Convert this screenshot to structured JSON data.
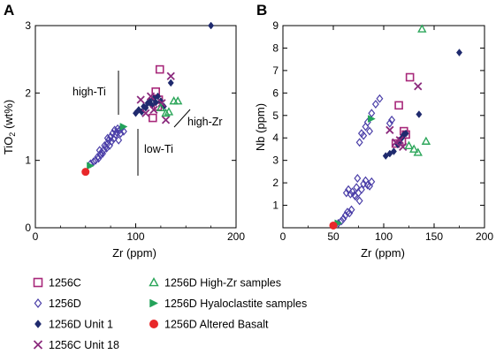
{
  "chart_data": [
    {
      "panel": "A",
      "type": "scatter",
      "xlabel": "Zr (ppm)",
      "ylabel_main": "TiO",
      "ylabel_sub": "2",
      "ylabel_unit": " (wt%)",
      "xlim": [
        0,
        200
      ],
      "ylim": [
        0,
        3
      ],
      "xticks": [
        "0",
        "100",
        "200"
      ],
      "yticks": [
        "0",
        "1",
        "2",
        "3"
      ],
      "annotations": [
        "high-Ti",
        "low-Ti",
        "high-Zr"
      ],
      "series": [
        {
          "name": "1256C",
          "marker": "open-square",
          "color": "#a8287a",
          "points": [
            [
              117,
              1.63
            ],
            [
              120,
              2.02
            ],
            [
              123,
              1.9
            ],
            [
              124,
              2.35
            ],
            [
              122,
              1.8
            ]
          ]
        },
        {
          "name": "1256D",
          "marker": "open-diamond",
          "color": "#4b3fa8",
          "points": [
            [
              55,
              0.95
            ],
            [
              58,
              0.98
            ],
            [
              60,
              1.0
            ],
            [
              62,
              1.05
            ],
            [
              63,
              1.03
            ],
            [
              65,
              1.08
            ],
            [
              66,
              1.12
            ],
            [
              67,
              1.1
            ],
            [
              68,
              1.15
            ],
            [
              70,
              1.2
            ],
            [
              71,
              1.18
            ],
            [
              72,
              1.25
            ],
            [
              73,
              1.3
            ],
            [
              74,
              1.22
            ],
            [
              75,
              1.35
            ],
            [
              76,
              1.28
            ],
            [
              77,
              1.4
            ],
            [
              78,
              1.32
            ],
            [
              79,
              1.45
            ],
            [
              80,
              1.38
            ],
            [
              81,
              1.42
            ],
            [
              82,
              1.47
            ],
            [
              83,
              1.3
            ],
            [
              84,
              1.45
            ],
            [
              85,
              1.4
            ],
            [
              86,
              1.48
            ],
            [
              88,
              1.43
            ],
            [
              64,
              1.15
            ],
            [
              69,
              1.22
            ],
            [
              72,
              1.33
            ]
          ]
        },
        {
          "name": "1256D Unit 1",
          "marker": "filled-diamond",
          "color": "#1f2a6e",
          "points": [
            [
              100,
              1.7
            ],
            [
              103,
              1.75
            ],
            [
              106,
              1.72
            ],
            [
              108,
              1.8
            ],
            [
              110,
              1.78
            ],
            [
              112,
              1.85
            ],
            [
              114,
              1.88
            ],
            [
              116,
              1.82
            ],
            [
              118,
              1.92
            ],
            [
              120,
              1.86
            ],
            [
              122,
              1.95
            ],
            [
              125,
              1.88
            ],
            [
              128,
              1.8
            ],
            [
              135,
              2.15
            ],
            [
              175,
              3.0
            ]
          ]
        },
        {
          "name": "1256C Unit 18",
          "marker": "x",
          "color": "#8b2a7d",
          "points": [
            [
              105,
              1.9
            ],
            [
              110,
              1.7
            ],
            [
              115,
              1.95
            ],
            [
              118,
              1.75
            ],
            [
              126,
              1.85
            ],
            [
              130,
              1.6
            ],
            [
              135,
              2.25
            ]
          ]
        },
        {
          "name": "1256D High-Zr samples",
          "marker": "open-triangle",
          "color": "#2ca65a",
          "points": [
            [
              125,
              1.78
            ],
            [
              130,
              1.7
            ],
            [
              133,
              1.72
            ],
            [
              138,
              1.88
            ],
            [
              142,
              1.88
            ]
          ]
        },
        {
          "name": "1256D Hyaloclastite samples",
          "marker": "filled-right-triangle",
          "color": "#23a25a",
          "points": [
            [
              55,
              0.92
            ],
            [
              88,
              1.5
            ]
          ]
        },
        {
          "name": "1256D Altered Basalt",
          "marker": "filled-circle",
          "color": "#e8282a",
          "points": [
            [
              50,
              0.83
            ]
          ]
        }
      ]
    },
    {
      "panel": "B",
      "type": "scatter",
      "xlabel": "Zr (ppm)",
      "ylabel": "Nb (ppm)",
      "xlim": [
        0,
        200
      ],
      "ylim": [
        0,
        9
      ],
      "xticks": [
        "0",
        "50",
        "100",
        "150",
        "200"
      ],
      "yticks": [
        "1",
        "2",
        "3",
        "4",
        "5",
        "6",
        "7",
        "8",
        "9"
      ],
      "series": [
        {
          "name": "1256C",
          "marker": "open-square",
          "color": "#a8287a",
          "points": [
            [
              112,
              3.75
            ],
            [
              118,
              3.85
            ],
            [
              120,
              4.3
            ],
            [
              122,
              4.15
            ],
            [
              126,
              6.7
            ],
            [
              115,
              5.45
            ]
          ]
        },
        {
          "name": "1256D",
          "marker": "open-diamond",
          "color": "#4b3fa8",
          "points": [
            [
              55,
              0.2
            ],
            [
              58,
              0.3
            ],
            [
              60,
              0.4
            ],
            [
              62,
              0.55
            ],
            [
              64,
              0.7
            ],
            [
              66,
              0.65
            ],
            [
              68,
              0.8
            ],
            [
              63,
              1.55
            ],
            [
              65,
              1.7
            ],
            [
              67,
              1.5
            ],
            [
              69,
              1.6
            ],
            [
              71,
              1.45
            ],
            [
              73,
              1.8
            ],
            [
              75,
              1.55
            ],
            [
              78,
              1.7
            ],
            [
              80,
              1.95
            ],
            [
              82,
              2.1
            ],
            [
              84,
              1.9
            ],
            [
              86,
              1.85
            ],
            [
              88,
              2.05
            ],
            [
              74,
              2.2
            ],
            [
              76,
              3.8
            ],
            [
              78,
              4.2
            ],
            [
              80,
              4.1
            ],
            [
              82,
              4.5
            ],
            [
              84,
              4.7
            ],
            [
              86,
              4.3
            ],
            [
              88,
              5.1
            ],
            [
              92,
              5.5
            ],
            [
              96,
              5.75
            ],
            [
              106,
              4.65
            ],
            [
              108,
              4.8
            ],
            [
              76,
              1.2
            ],
            [
              72,
              1.4
            ]
          ]
        },
        {
          "name": "1256D Unit 1",
          "marker": "filled-diamond",
          "color": "#1f2a6e",
          "points": [
            [
              102,
              3.2
            ],
            [
              106,
              3.3
            ],
            [
              110,
              3.4
            ],
            [
              114,
              3.7
            ],
            [
              116,
              3.8
            ],
            [
              118,
              4.0
            ],
            [
              120,
              4.15
            ],
            [
              122,
              4.2
            ],
            [
              135,
              5.05
            ],
            [
              175,
              7.8
            ]
          ]
        },
        {
          "name": "1256C Unit 18",
          "marker": "x",
          "color": "#8b2a7d",
          "points": [
            [
              106,
              4.35
            ],
            [
              112,
              3.8
            ],
            [
              116,
              3.9
            ],
            [
              119,
              3.6
            ],
            [
              134,
              6.3
            ]
          ]
        },
        {
          "name": "1256D High-Zr samples",
          "marker": "open-triangle",
          "color": "#2ca65a",
          "points": [
            [
              125,
              3.65
            ],
            [
              130,
              3.5
            ],
            [
              134,
              3.35
            ],
            [
              138,
              8.85
            ],
            [
              142,
              3.85
            ]
          ]
        },
        {
          "name": "1256D Hyaloclastite samples",
          "marker": "filled-right-triangle",
          "color": "#23a25a",
          "points": [
            [
              55,
              0.2
            ],
            [
              88,
              4.85
            ]
          ]
        },
        {
          "name": "1256D Altered Basalt",
          "marker": "filled-circle",
          "color": "#e8282a",
          "points": [
            [
              50,
              0.1
            ]
          ]
        }
      ]
    }
  ],
  "legend": [
    {
      "label": "1256C",
      "marker": "open-square",
      "color": "#a8287a"
    },
    {
      "label": "1256D",
      "marker": "open-diamond",
      "color": "#4b3fa8"
    },
    {
      "label": "1256D Unit 1",
      "marker": "filled-diamond",
      "color": "#1f2a6e"
    },
    {
      "label": "1256C Unit 18",
      "marker": "x",
      "color": "#8b2a7d"
    },
    {
      "label": "1256D High-Zr samples",
      "marker": "open-triangle",
      "color": "#2ca65a"
    },
    {
      "label": "1256D Hyaloclastite samples",
      "marker": "filled-right-triangle",
      "color": "#23a25a"
    },
    {
      "label": "1256D Altered Basalt",
      "marker": "filled-circle",
      "color": "#e8282a"
    }
  ]
}
